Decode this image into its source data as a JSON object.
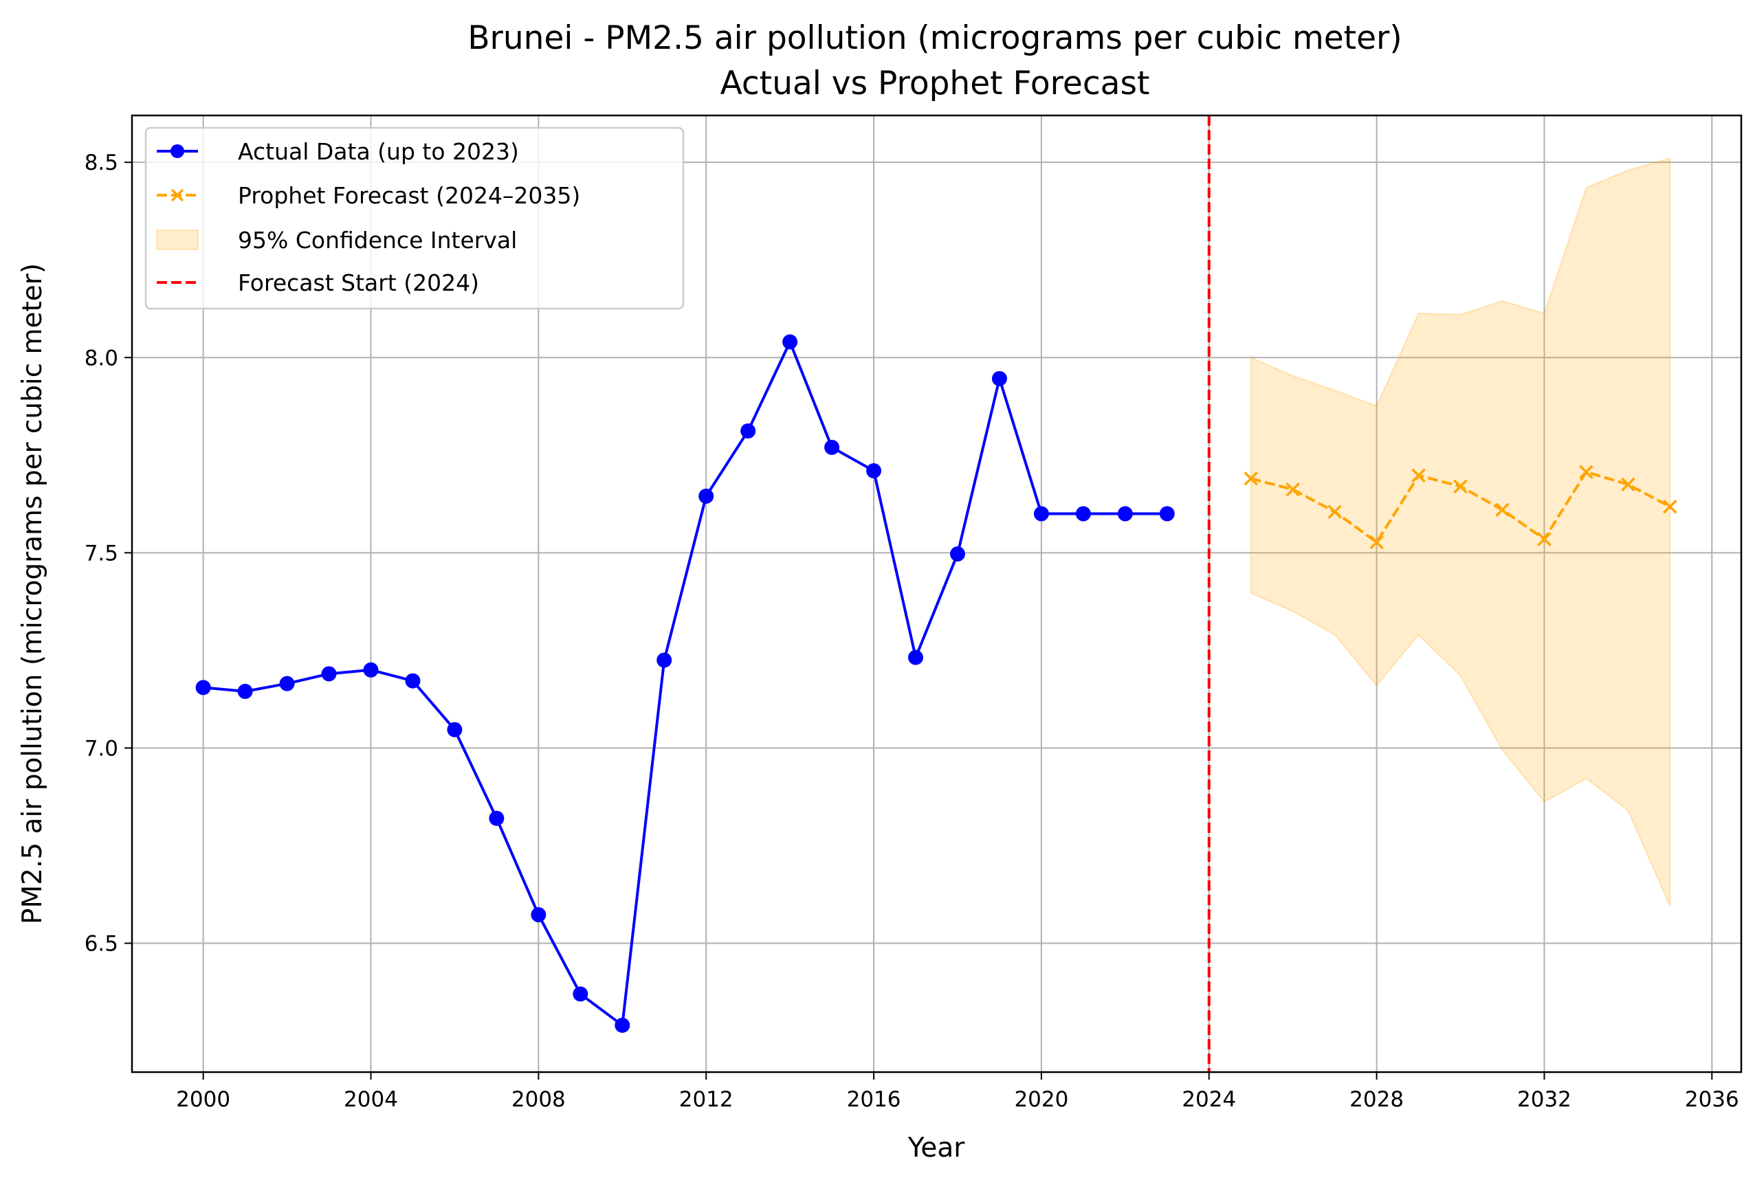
{
  "chart_data": {
    "type": "line",
    "title": "Brunei - PM2.5 air pollution (micrograms per cubic meter)",
    "subtitle": "Actual vs Prophet Forecast",
    "xlabel": "Year",
    "ylabel": "PM2.5 air pollution (micrograms per cubic meter)",
    "xlim": [
      1998.3,
      2036.7
    ],
    "ylim": [
      6.17,
      8.62
    ],
    "x_ticks": [
      2000,
      2004,
      2008,
      2012,
      2016,
      2020,
      2024,
      2028,
      2032,
      2036
    ],
    "x_tick_labels": [
      "2000",
      "2004",
      "2008",
      "2012",
      "2016",
      "2020",
      "2024",
      "2028",
      "2032",
      "2036"
    ],
    "y_ticks": [
      6.5,
      7.0,
      7.5,
      8.0,
      8.5
    ],
    "y_tick_labels": [
      "6.5",
      "7.0",
      "7.5",
      "8.0",
      "8.5"
    ],
    "grid": true,
    "legend_position": "top-left",
    "series": [
      {
        "name": "Actual Data (up to 2023)",
        "color": "#0000ff",
        "style": "solid",
        "marker": "circle",
        "x": [
          2000,
          2001,
          2002,
          2003,
          2004,
          2005,
          2006,
          2007,
          2008,
          2009,
          2010,
          2011,
          2012,
          2013,
          2014,
          2015,
          2016,
          2017,
          2018,
          2019,
          2020,
          2021,
          2022,
          2023
        ],
        "y": [
          7.155,
          7.145,
          7.165,
          7.19,
          7.2,
          7.172,
          7.047,
          6.82,
          6.573,
          6.37,
          6.29,
          7.225,
          7.645,
          7.812,
          8.04,
          7.77,
          7.71,
          7.232,
          7.497,
          7.946,
          7.6,
          7.6,
          7.6,
          7.6
        ]
      },
      {
        "name": "Prophet Forecast (2024–2035)",
        "color": "#ffa500",
        "style": "dashed",
        "marker": "x",
        "x": [
          2025,
          2026,
          2027,
          2028,
          2029,
          2030,
          2031,
          2032,
          2033,
          2034,
          2035
        ],
        "y": [
          7.69,
          7.662,
          7.605,
          7.527,
          7.698,
          7.67,
          7.61,
          7.535,
          7.707,
          7.675,
          7.618
        ]
      }
    ],
    "confidence_interval": {
      "name": "95% Confidence Interval",
      "color": "#ffa500",
      "opacity": 0.2,
      "x": [
        2025,
        2026,
        2027,
        2028,
        2029,
        2030,
        2031,
        2032,
        2033,
        2034,
        2035
      ],
      "lower": [
        7.397,
        7.35,
        7.29,
        7.16,
        7.29,
        7.185,
        6.995,
        6.862,
        6.922,
        6.84,
        6.595
      ],
      "upper": [
        8.0,
        7.953,
        7.916,
        7.876,
        8.113,
        8.11,
        8.145,
        8.113,
        8.435,
        8.48,
        8.51
      ]
    },
    "forecast_start": {
      "name": "Forecast Start (2024)",
      "x": 2024,
      "color": "#ff0000",
      "style": "dashed"
    }
  }
}
